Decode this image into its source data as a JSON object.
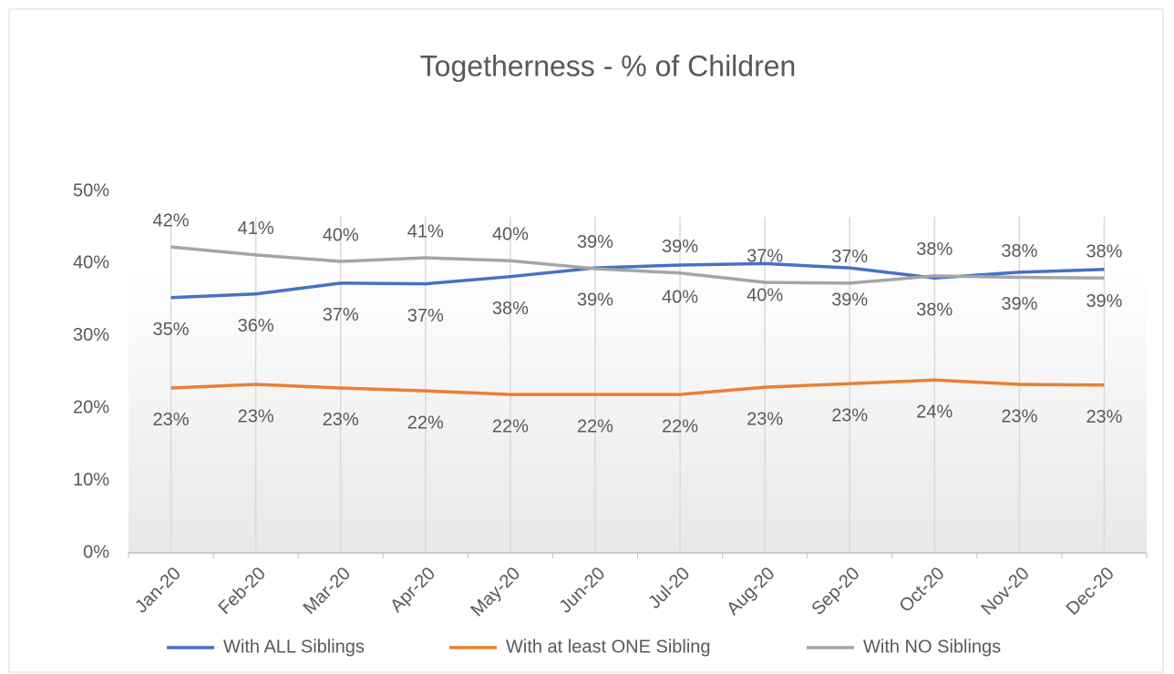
{
  "chart_data": {
    "type": "line",
    "title": "Togetherness - % of Children",
    "categories": [
      "Jan-20",
      "Feb-20",
      "Mar-20",
      "Apr-20",
      "May-20",
      "Jun-20",
      "Jul-20",
      "Aug-20",
      "Sep-20",
      "Oct-20",
      "Nov-20",
      "Dec-20"
    ],
    "series": [
      {
        "name": "With ALL Siblings",
        "color": "#4472c4",
        "values": [
          35.3,
          35.8,
          37.3,
          37.2,
          38.2,
          39.4,
          39.8,
          40.0,
          39.4,
          38.0,
          38.8,
          39.2
        ],
        "value_labels": [
          "35%",
          "36%",
          "37%",
          "37%",
          "38%",
          "39%",
          "40%",
          "40%",
          "39%",
          "38%",
          "39%",
          "39%"
        ]
      },
      {
        "name": "With at least ONE Sibling",
        "color": "#ed7d31",
        "values": [
          22.8,
          23.3,
          22.8,
          22.4,
          21.9,
          21.9,
          21.9,
          22.9,
          23.4,
          23.9,
          23.3,
          23.2
        ],
        "value_labels": [
          "23%",
          "23%",
          "23%",
          "22%",
          "22%",
          "22%",
          "22%",
          "23%",
          "23%",
          "24%",
          "23%",
          "23%"
        ]
      },
      {
        "name": "With NO Siblings",
        "color": "#a5a5a5",
        "values": [
          42.3,
          41.2,
          40.3,
          40.8,
          40.4,
          39.3,
          38.7,
          37.4,
          37.3,
          38.3,
          38.1,
          38.0
        ],
        "value_labels": [
          "42%",
          "41%",
          "40%",
          "41%",
          "40%",
          "39%",
          "39%",
          "37%",
          "37%",
          "38%",
          "38%",
          "38%"
        ]
      }
    ],
    "ylim": [
      0,
      50
    ],
    "yticks": [
      {
        "value": 0,
        "label": "0%"
      },
      {
        "value": 10,
        "label": "10%"
      },
      {
        "value": 20,
        "label": "20%"
      },
      {
        "value": 30,
        "label": "30%"
      },
      {
        "value": 40,
        "label": "40%"
      },
      {
        "value": 50,
        "label": "50%"
      }
    ],
    "grid": true,
    "legend": "bottom"
  }
}
